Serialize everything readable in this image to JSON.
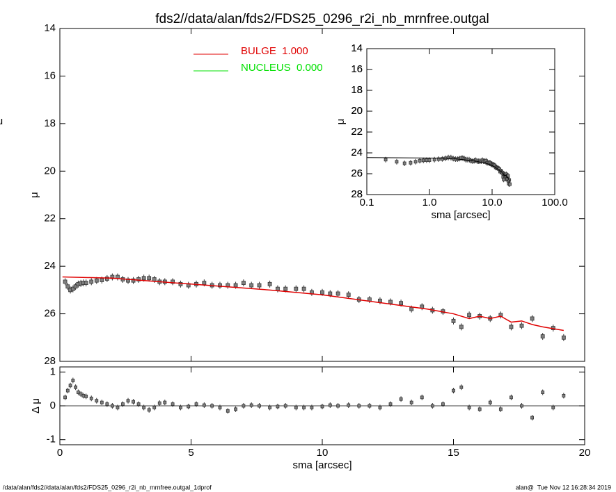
{
  "chart_data": [
    {
      "type": "scatter",
      "title": "fds2//data/alan/fds2/FDS25_0296_r2i_nb_mrnfree.outgal",
      "ylabel": "μ",
      "xlim": [
        0,
        20
      ],
      "xticks": [
        0,
        5,
        10,
        15,
        20
      ],
      "ylim": [
        28,
        14
      ],
      "yticks": [
        14,
        16,
        18,
        20,
        22,
        24,
        26,
        28
      ],
      "x": [
        0.2,
        0.3,
        0.4,
        0.5,
        0.6,
        0.7,
        0.8,
        0.9,
        1.0,
        1.2,
        1.4,
        1.6,
        1.8,
        2.0,
        2.2,
        2.4,
        2.6,
        2.8,
        3.0,
        3.2,
        3.4,
        3.6,
        3.8,
        4.0,
        4.3,
        4.6,
        4.9,
        5.2,
        5.5,
        5.8,
        6.1,
        6.4,
        6.7,
        7.0,
        7.3,
        7.6,
        8.0,
        8.3,
        8.6,
        9.0,
        9.3,
        9.6,
        10.0,
        10.3,
        10.6,
        11.0,
        11.4,
        11.8,
        12.2,
        12.6,
        13.0,
        13.4,
        13.8,
        14.2,
        14.6,
        15.0,
        15.3,
        15.6,
        16.0,
        16.4,
        16.8,
        17.2,
        17.6,
        18.0,
        18.4,
        18.8,
        19.2
      ],
      "values": [
        24.65,
        24.85,
        25.0,
        24.95,
        24.85,
        24.75,
        24.72,
        24.7,
        24.7,
        24.65,
        24.6,
        24.58,
        24.52,
        24.45,
        24.45,
        24.55,
        24.6,
        24.6,
        24.55,
        24.5,
        24.5,
        24.55,
        24.65,
        24.65,
        24.65,
        24.75,
        24.8,
        24.75,
        24.7,
        24.8,
        24.8,
        24.8,
        24.8,
        24.7,
        24.8,
        24.8,
        24.75,
        24.95,
        24.95,
        24.95,
        24.95,
        25.1,
        25.1,
        25.15,
        25.15,
        25.2,
        25.4,
        25.4,
        25.45,
        25.5,
        25.55,
        25.8,
        25.7,
        25.85,
        25.9,
        26.3,
        26.55,
        26.05,
        26.1,
        26.2,
        26.05,
        26.55,
        26.5,
        26.2,
        26.95,
        26.6,
        27.0
      ],
      "color": "#808080",
      "series": [
        {
          "name": "BULGE  1.000",
          "color": "#e00000",
          "x": [
            0.1,
            2,
            5,
            8,
            10,
            12,
            14,
            15,
            15.6,
            16,
            16.4,
            16.8,
            17.2,
            17.6,
            18,
            18.4,
            19.2
          ],
          "values": [
            24.45,
            24.5,
            24.75,
            25.0,
            25.2,
            25.5,
            25.8,
            26.0,
            26.2,
            26.1,
            26.2,
            26.1,
            26.35,
            26.3,
            26.45,
            26.55,
            26.7
          ]
        },
        {
          "name": "NUCLEUS  0.000",
          "color": "#00e000"
        }
      ]
    },
    {
      "type": "scatter",
      "xlabel": "sma [arcsec]",
      "ylabel": "Δ μ",
      "xlim": [
        0,
        20
      ],
      "xticks": [
        0,
        5,
        10,
        15,
        20
      ],
      "ylim": [
        -1.15,
        1.15
      ],
      "yticks": [
        -1,
        0,
        1
      ],
      "x": [
        0.2,
        0.3,
        0.4,
        0.5,
        0.6,
        0.7,
        0.8,
        0.9,
        1.0,
        1.2,
        1.4,
        1.6,
        1.8,
        2.0,
        2.2,
        2.4,
        2.6,
        2.8,
        3.0,
        3.2,
        3.4,
        3.6,
        3.8,
        4.0,
        4.3,
        4.6,
        4.9,
        5.2,
        5.5,
        5.8,
        6.1,
        6.4,
        6.7,
        7.0,
        7.3,
        7.6,
        8.0,
        8.3,
        8.6,
        9.0,
        9.3,
        9.6,
        10.0,
        10.3,
        10.6,
        11.0,
        11.4,
        11.8,
        12.2,
        12.6,
        13.0,
        13.4,
        13.8,
        14.2,
        14.6,
        15.0,
        15.3,
        15.6,
        16.0,
        16.4,
        16.8,
        17.2,
        17.6,
        18.0,
        18.4,
        18.8,
        19.2
      ],
      "values": [
        0.25,
        0.45,
        0.6,
        0.75,
        0.55,
        0.4,
        0.35,
        0.3,
        0.28,
        0.22,
        0.15,
        0.1,
        0.05,
        0.0,
        -0.05,
        0.05,
        0.15,
        0.12,
        0.05,
        -0.05,
        -0.12,
        -0.05,
        0.08,
        0.1,
        0.05,
        -0.05,
        -0.02,
        0.05,
        0.02,
        0.0,
        -0.05,
        -0.15,
        -0.1,
        0.0,
        0.02,
        0.0,
        -0.05,
        -0.02,
        0.0,
        -0.05,
        -0.05,
        -0.05,
        -0.02,
        0.02,
        0.0,
        0.02,
        0.0,
        0.0,
        -0.05,
        0.05,
        0.2,
        0.1,
        0.25,
        0.0,
        0.05,
        0.45,
        0.55,
        -0.05,
        -0.1,
        0.1,
        -0.1,
        0.25,
        0.0,
        -0.35,
        0.4,
        -0.05,
        0.3
      ],
      "color": "#808080"
    },
    {
      "type": "inset",
      "xlabel": "sma [arcsec]",
      "ylabel": "μ",
      "xlog": true,
      "xlim": [
        0.1,
        100
      ],
      "xticks": [
        {
          "value": 0.1,
          "label": "0.1"
        },
        {
          "value": 1,
          "label": "1.0"
        },
        {
          "value": 10,
          "label": "10.0"
        },
        {
          "value": 100,
          "label": "100.0"
        }
      ],
      "ylim": [
        28,
        14
      ],
      "yticks": [
        14,
        16,
        18,
        20,
        22,
        24,
        26,
        28
      ],
      "line_color": "#000000"
    }
  ],
  "footer": {
    "left": "/data/alan/fds2//data/alan/fds2/FDS25_0296_r2i_nb_mrnfree.outgal_1dprof",
    "right": "alan@  Tue Nov 12 16:28:34 2019"
  }
}
